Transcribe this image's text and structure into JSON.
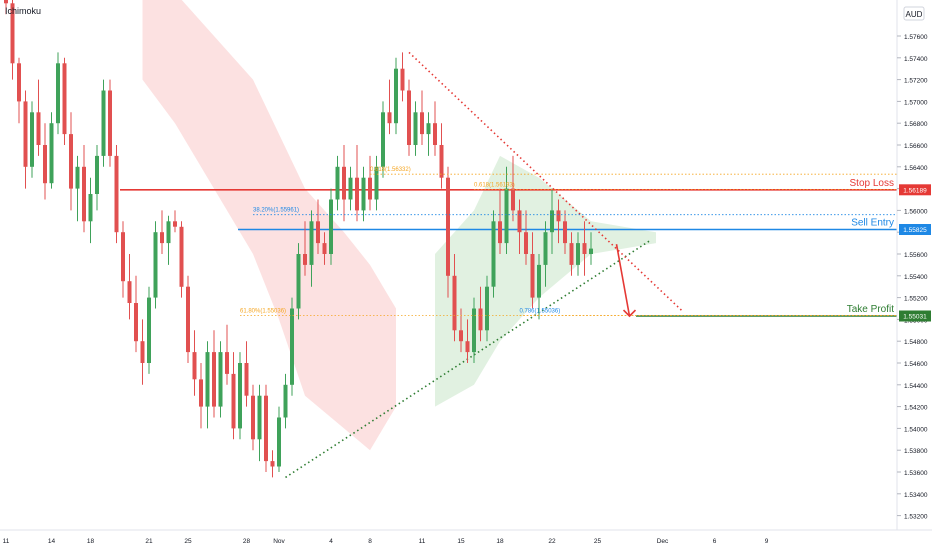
{
  "indicator": {
    "label": "Ichimoku"
  },
  "currency": {
    "label": "AUD"
  },
  "chart_data": {
    "type": "candlestick",
    "title": "",
    "price_axis": {
      "min": 1.53,
      "max": 1.58,
      "ticks": [
        1.576,
        1.574,
        1.572,
        1.57,
        1.568,
        1.566,
        1.564,
        1.562,
        1.56,
        1.558,
        1.556,
        1.554,
        1.552,
        1.55,
        1.548,
        1.546,
        1.544,
        1.542,
        1.54,
        1.538,
        1.536,
        1.534,
        1.532,
        1.53
      ],
      "tick_labels": [
        "1.57600",
        "1.57400",
        "1.57200",
        "1.57000",
        "1.56800",
        "1.56600",
        "1.56400",
        "1.56200",
        "1.56000",
        "1.55800",
        "1.55600",
        "1.55400",
        "1.55200",
        "1.55000",
        "1.54800",
        "1.54600",
        "1.54400",
        "1.54200",
        "1.54000",
        "1.53800",
        "1.53600",
        "1.53400",
        "1.53200",
        "1.53000"
      ]
    },
    "time_axis": {
      "labels": [
        "11",
        "14",
        "18",
        "21",
        "25",
        "28",
        "Nov",
        "4",
        "8",
        "11",
        "15",
        "18",
        "22",
        "25",
        "Dec",
        "6",
        "9"
      ],
      "bar_index": [
        0,
        7,
        13,
        22,
        28,
        37,
        42,
        50,
        56,
        64,
        70,
        76,
        84,
        91,
        101,
        109,
        117
      ]
    },
    "levels": [
      {
        "name": "Stop Loss",
        "value": 1.56189,
        "value_label": "1.56189",
        "color": "#e53935"
      },
      {
        "name": "Sell Entry",
        "value": 1.55825,
        "value_label": "1.55825",
        "color": "#1e88e5"
      },
      {
        "name": "Take Profit",
        "value": 1.55031,
        "value_label": "1.55031",
        "color": "#2e7d32"
      }
    ],
    "fib_labels": [
      {
        "text": "38.20%(1.55961)",
        "value": 1.55961,
        "bar": 38
      },
      {
        "text": "61.80%(1.55036)",
        "value": 1.55036,
        "bar": 36
      },
      {
        "text": "0.786(1.55036)",
        "value": 1.55036,
        "bar": 79
      },
      {
        "text": "0.618(1.56193)",
        "value": 1.56193,
        "bar": 72
      },
      {
        "text": "0.618(1.56332)",
        "value": 1.56332,
        "bar": 56
      }
    ],
    "trendlines": [
      {
        "kind": "support",
        "from": [
          43,
          1.5355
        ],
        "to": [
          99,
          1.5572
        ]
      },
      {
        "kind": "resistance",
        "from": [
          62,
          1.5745
        ],
        "to": [
          104,
          1.5508
        ]
      }
    ],
    "projection": {
      "from": [
        93,
        1.5569
      ],
      "to": [
        95,
        1.5503
      ]
    },
    "candles": [
      [
        1.585,
        1.586,
        1.578,
        1.579
      ],
      [
        1.579,
        1.58,
        1.572,
        1.5735
      ],
      [
        1.5735,
        1.574,
        1.568,
        1.57
      ],
      [
        1.57,
        1.571,
        1.562,
        1.564
      ],
      [
        1.564,
        1.57,
        1.563,
        1.569
      ],
      [
        1.569,
        1.572,
        1.565,
        1.566
      ],
      [
        1.566,
        1.568,
        1.561,
        1.5625
      ],
      [
        1.5625,
        1.569,
        1.562,
        1.568
      ],
      [
        1.568,
        1.5745,
        1.567,
        1.5735
      ],
      [
        1.5735,
        1.574,
        1.566,
        1.567
      ],
      [
        1.567,
        1.569,
        1.56,
        1.562
      ],
      [
        1.562,
        1.565,
        1.559,
        1.564
      ],
      [
        1.564,
        1.566,
        1.558,
        1.559
      ],
      [
        1.559,
        1.563,
        1.557,
        1.5615
      ],
      [
        1.5615,
        1.566,
        1.56,
        1.565
      ],
      [
        1.565,
        1.572,
        1.564,
        1.571
      ],
      [
        1.571,
        1.572,
        1.564,
        1.565
      ],
      [
        1.565,
        1.566,
        1.557,
        1.558
      ],
      [
        1.558,
        1.559,
        1.552,
        1.5535
      ],
      [
        1.5535,
        1.556,
        1.55,
        1.5515
      ],
      [
        1.5515,
        1.554,
        1.547,
        1.548
      ],
      [
        1.548,
        1.55,
        1.544,
        1.546
      ],
      [
        1.546,
        1.553,
        1.545,
        1.552
      ],
      [
        1.552,
        1.559,
        1.551,
        1.558
      ],
      [
        1.558,
        1.56,
        1.556,
        1.557
      ],
      [
        1.557,
        1.5595,
        1.555,
        1.559
      ],
      [
        1.559,
        1.56,
        1.558,
        1.5585
      ],
      [
        1.5585,
        1.559,
        1.552,
        1.553
      ],
      [
        1.553,
        1.554,
        1.546,
        1.547
      ],
      [
        1.547,
        1.549,
        1.543,
        1.5445
      ],
      [
        1.5445,
        1.546,
        1.54,
        1.542
      ],
      [
        1.542,
        1.548,
        1.54,
        1.547
      ],
      [
        1.547,
        1.549,
        1.541,
        1.542
      ],
      [
        1.542,
        1.548,
        1.541,
        1.547
      ],
      [
        1.547,
        1.5495,
        1.544,
        1.545
      ],
      [
        1.545,
        1.547,
        1.539,
        1.54
      ],
      [
        1.54,
        1.547,
        1.539,
        1.546
      ],
      [
        1.546,
        1.548,
        1.542,
        1.543
      ],
      [
        1.543,
        1.544,
        1.538,
        1.539
      ],
      [
        1.539,
        1.544,
        1.537,
        1.543
      ],
      [
        1.543,
        1.544,
        1.536,
        1.537
      ],
      [
        1.537,
        1.538,
        1.5355,
        1.5365
      ],
      [
        1.5365,
        1.542,
        1.536,
        1.541
      ],
      [
        1.541,
        1.545,
        1.54,
        1.544
      ],
      [
        1.544,
        1.552,
        1.543,
        1.551
      ],
      [
        1.551,
        1.557,
        1.55,
        1.556
      ],
      [
        1.556,
        1.559,
        1.554,
        1.555
      ],
      [
        1.555,
        1.56,
        1.553,
        1.559
      ],
      [
        1.559,
        1.561,
        1.556,
        1.557
      ],
      [
        1.557,
        1.558,
        1.555,
        1.556
      ],
      [
        1.556,
        1.562,
        1.555,
        1.561
      ],
      [
        1.561,
        1.565,
        1.56,
        1.564
      ],
      [
        1.564,
        1.566,
        1.559,
        1.561
      ],
      [
        1.561,
        1.564,
        1.56,
        1.563
      ],
      [
        1.563,
        1.566,
        1.559,
        1.56
      ],
      [
        1.56,
        1.564,
        1.559,
        1.563
      ],
      [
        1.563,
        1.565,
        1.56,
        1.561
      ],
      [
        1.561,
        1.565,
        1.56,
        1.564
      ],
      [
        1.564,
        1.57,
        1.563,
        1.569
      ],
      [
        1.569,
        1.572,
        1.567,
        1.568
      ],
      [
        1.568,
        1.574,
        1.567,
        1.573
      ],
      [
        1.573,
        1.5745,
        1.57,
        1.571
      ],
      [
        1.571,
        1.572,
        1.565,
        1.566
      ],
      [
        1.566,
        1.57,
        1.565,
        1.569
      ],
      [
        1.569,
        1.571,
        1.566,
        1.567
      ],
      [
        1.567,
        1.569,
        1.565,
        1.568
      ],
      [
        1.568,
        1.57,
        1.565,
        1.566
      ],
      [
        1.566,
        1.568,
        1.562,
        1.563
      ],
      [
        1.563,
        1.564,
        1.552,
        1.554
      ],
      [
        1.554,
        1.556,
        1.548,
        1.549
      ],
      [
        1.549,
        1.551,
        1.547,
        1.548
      ],
      [
        1.548,
        1.55,
        1.546,
        1.547
      ],
      [
        1.547,
        1.552,
        1.546,
        1.551
      ],
      [
        1.551,
        1.553,
        1.548,
        1.549
      ],
      [
        1.549,
        1.554,
        1.548,
        1.553
      ],
      [
        1.553,
        1.56,
        1.552,
        1.559
      ],
      [
        1.559,
        1.562,
        1.556,
        1.557
      ],
      [
        1.557,
        1.564,
        1.556,
        1.562
      ],
      [
        1.562,
        1.565,
        1.559,
        1.56
      ],
      [
        1.56,
        1.561,
        1.556,
        1.558
      ],
      [
        1.558,
        1.56,
        1.555,
        1.556
      ],
      [
        1.556,
        1.558,
        1.551,
        1.552
      ],
      [
        1.552,
        1.556,
        1.55,
        1.555
      ],
      [
        1.555,
        1.559,
        1.553,
        1.558
      ],
      [
        1.558,
        1.562,
        1.556,
        1.56
      ],
      [
        1.56,
        1.561,
        1.557,
        1.559
      ],
      [
        1.559,
        1.56,
        1.556,
        1.557
      ],
      [
        1.557,
        1.558,
        1.554,
        1.555
      ],
      [
        1.555,
        1.558,
        1.554,
        1.557
      ],
      [
        1.557,
        1.559,
        1.554,
        1.556
      ],
      [
        1.556,
        1.558,
        1.555,
        1.5565
      ]
    ]
  }
}
